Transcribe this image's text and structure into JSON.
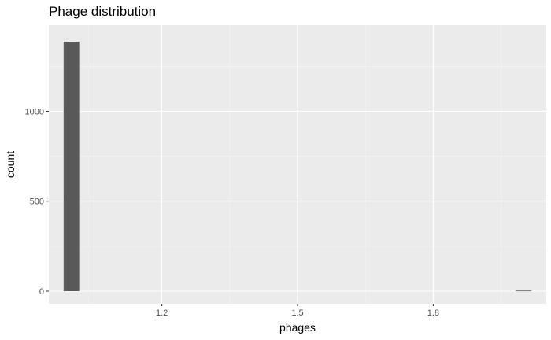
{
  "chart_data": {
    "type": "bar",
    "title": "Phage distribution",
    "xlabel": "phages",
    "ylabel": "count",
    "x_ticks": [
      1.2,
      1.5,
      1.8
    ],
    "x_tick_labels": [
      "1.2",
      "1.5",
      "1.8"
    ],
    "y_ticks": [
      0,
      500,
      1000
    ],
    "y_tick_labels": [
      "0",
      "500",
      "1000"
    ],
    "xlim": [
      0.95,
      2.05
    ],
    "ylim": [
      -70,
      1479
    ],
    "bin_width": 0.0345,
    "bins": [
      {
        "center": 1.0,
        "count": 1387
      },
      {
        "center": 2.0,
        "count": 3
      }
    ],
    "grid": true,
    "legend": "none",
    "colors": {
      "panel_background": "#ebebeb",
      "grid_major": "#ffffff",
      "grid_minor": "#f5f5f5",
      "bar_fill": "#595959",
      "tick_color": "#333333"
    }
  }
}
